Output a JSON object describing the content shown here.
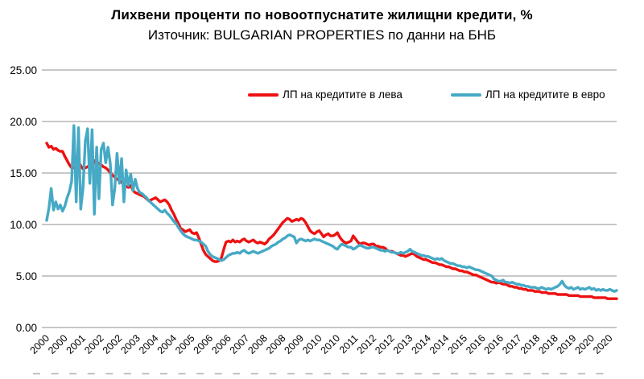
{
  "chart_data": {
    "type": "line",
    "title": "Лихвени проценти по новоотпуснатите жилищни кредити, %",
    "subtitle": "Източник: BULGARIAN PROPERTIES по данни на БНБ",
    "xlabel": "",
    "ylabel": "",
    "ylim": [
      0,
      25
    ],
    "y_ticks": [
      0,
      5,
      10,
      15,
      20,
      25
    ],
    "y_tick_labels": [
      "0.00",
      "5.00",
      "10.00",
      "15.00",
      "20.00",
      "25.00"
    ],
    "x_frequency": "monthly",
    "x_start": "2000-01",
    "x_end": "2020-12",
    "x_tick_every_months": 8,
    "x_tick_labels": [
      "2000",
      "2000",
      "2001",
      "2002",
      "2002",
      "2003",
      "2004",
      "2004",
      "2005",
      "2006",
      "2006",
      "2007",
      "2008",
      "2008",
      "2009",
      "2010",
      "2010",
      "2011",
      "2012",
      "2012",
      "2013",
      "2014",
      "2014",
      "2015",
      "2016",
      "2016",
      "2017",
      "2018",
      "2018",
      "2019",
      "2020",
      "2020"
    ],
    "grid": "horizontal",
    "legend_position": "top",
    "colors": {
      "gridline": "#a6a6a6",
      "tick_dash": "#b3b3b3",
      "text": "#000000"
    },
    "series": [
      {
        "name": "ЛП на кредитите в лева",
        "color": "#ee1111",
        "values": [
          17.9,
          17.5,
          17.6,
          17.3,
          17.4,
          17.2,
          17.1,
          17.1,
          16.6,
          16.2,
          15.8,
          15.5,
          15.5,
          15.8,
          16.1,
          15.7,
          15.4,
          15.5,
          15.6,
          15.8,
          15.5,
          16.2,
          16.1,
          15.9,
          15.8,
          15.6,
          15.5,
          15.3,
          15.0,
          14.8,
          14.6,
          14.4,
          14.3,
          14.1,
          13.9,
          13.7,
          13.6,
          13.8,
          13.3,
          13.1,
          13.0,
          12.9,
          12.8,
          12.7,
          12.5,
          12.3,
          12.4,
          12.5,
          12.6,
          12.4,
          12.2,
          12.3,
          12.4,
          12.2,
          11.9,
          11.4,
          11.0,
          10.5,
          10.1,
          9.6,
          9.5,
          9.3,
          9.4,
          9.5,
          9.2,
          9.1,
          9.2,
          8.7,
          8.1,
          7.5,
          7.1,
          6.9,
          6.7,
          6.5,
          6.4,
          6.4,
          6.5,
          6.8,
          7.6,
          8.3,
          8.4,
          8.3,
          8.5,
          8.3,
          8.4,
          8.3,
          8.5,
          8.6,
          8.4,
          8.3,
          8.4,
          8.5,
          8.3,
          8.2,
          8.3,
          8.2,
          8.1,
          8.3,
          8.6,
          8.8,
          9.0,
          9.3,
          9.6,
          9.9,
          10.2,
          10.4,
          10.6,
          10.5,
          10.3,
          10.4,
          10.5,
          10.4,
          10.6,
          10.5,
          10.2,
          9.8,
          9.4,
          9.2,
          9.1,
          9.3,
          9.4,
          9.1,
          8.8,
          9.0,
          9.1,
          8.9,
          8.9,
          9.0,
          9.2,
          8.8,
          8.5,
          8.3,
          8.2,
          8.3,
          8.4,
          8.9,
          8.6,
          8.3,
          8.1,
          8.2,
          8.2,
          8.1,
          8.0,
          8.1,
          8.1,
          7.9,
          7.9,
          7.8,
          7.8,
          7.7,
          7.5,
          7.4,
          7.4,
          7.3,
          7.2,
          7.1,
          7.0,
          7.0,
          6.9,
          7.0,
          7.1,
          7.2,
          7.1,
          6.9,
          6.8,
          6.7,
          6.6,
          6.6,
          6.5,
          6.4,
          6.3,
          6.3,
          6.2,
          6.1,
          6.1,
          6.0,
          5.9,
          5.9,
          5.8,
          5.7,
          5.7,
          5.6,
          5.5,
          5.5,
          5.4,
          5.4,
          5.3,
          5.2,
          5.1,
          5.1,
          5.0,
          4.9,
          4.8,
          4.7,
          4.6,
          4.5,
          4.4,
          4.4,
          4.3,
          4.4,
          4.3,
          4.2,
          4.2,
          4.1,
          4.0,
          4.0,
          3.9,
          3.9,
          3.8,
          3.8,
          3.7,
          3.7,
          3.6,
          3.6,
          3.6,
          3.5,
          3.5,
          3.5,
          3.4,
          3.4,
          3.4,
          3.3,
          3.3,
          3.3,
          3.3,
          3.2,
          3.2,
          3.2,
          3.2,
          3.2,
          3.1,
          3.1,
          3.1,
          3.1,
          3.1,
          3.0,
          3.0,
          3.0,
          3.0,
          3.0,
          3.0,
          2.9,
          2.9,
          2.9,
          2.9,
          2.9,
          2.9,
          2.8,
          2.8,
          2.8,
          2.8,
          2.8
        ]
      },
      {
        "name": "ЛП на кредитите в евро",
        "color": "#46a9c5",
        "values": [
          10.4,
          11.6,
          13.5,
          11.4,
          12.2,
          11.5,
          11.9,
          11.3,
          11.8,
          12.6,
          13.2,
          14.2,
          19.6,
          12.2,
          19.4,
          11.5,
          13.5,
          18.1,
          19.3,
          14.0,
          19.2,
          11.0,
          17.5,
          12.5,
          17.3,
          17.9,
          16.0,
          17.5,
          15.9,
          11.9,
          13.5,
          16.9,
          14.0,
          16.4,
          12.2,
          15.3,
          13.8,
          14.9,
          13.3,
          14.4,
          13.5,
          13.1,
          13.0,
          12.8,
          12.6,
          12.3,
          12.1,
          11.9,
          11.7,
          11.5,
          11.3,
          11.2,
          11.4,
          11.1,
          10.9,
          10.6,
          10.3,
          10.1,
          9.7,
          9.4,
          9.1,
          8.9,
          8.8,
          8.7,
          8.6,
          8.5,
          8.5,
          8.4,
          8.3,
          8.1,
          7.9,
          7.4,
          7.1,
          6.9,
          6.8,
          6.7,
          6.6,
          6.5,
          6.6,
          6.8,
          7.0,
          7.1,
          7.2,
          7.2,
          7.3,
          7.2,
          7.4,
          7.5,
          7.3,
          7.2,
          7.3,
          7.4,
          7.3,
          7.2,
          7.3,
          7.4,
          7.5,
          7.6,
          7.7,
          7.9,
          8.0,
          8.1,
          8.3,
          8.4,
          8.6,
          8.7,
          8.9,
          9.0,
          8.9,
          8.8,
          8.2,
          8.5,
          8.6,
          8.5,
          8.4,
          8.5,
          8.4,
          8.5,
          8.6,
          8.5,
          8.5,
          8.4,
          8.3,
          8.2,
          8.1,
          8.0,
          7.9,
          7.7,
          7.6,
          7.9,
          8.1,
          8.0,
          7.9,
          7.8,
          7.8,
          7.6,
          7.7,
          7.9,
          8.0,
          7.9,
          7.8,
          7.7,
          7.7,
          7.8,
          7.8,
          7.7,
          7.6,
          7.5,
          7.5,
          7.4,
          7.5,
          7.4,
          7.3,
          7.3,
          7.2,
          7.2,
          7.3,
          7.2,
          7.3,
          7.4,
          7.6,
          7.4,
          7.3,
          7.2,
          7.1,
          7.0,
          7.0,
          6.9,
          6.9,
          6.8,
          6.7,
          6.6,
          6.7,
          6.6,
          6.7,
          6.5,
          6.4,
          6.3,
          6.2,
          6.2,
          6.1,
          6.0,
          6.0,
          5.9,
          5.9,
          5.8,
          5.9,
          5.8,
          5.7,
          5.6,
          5.6,
          5.5,
          5.4,
          5.3,
          5.2,
          5.1,
          5.0,
          4.7,
          4.6,
          4.5,
          4.5,
          4.6,
          4.4,
          4.4,
          4.3,
          4.4,
          4.3,
          4.2,
          4.2,
          4.1,
          4.1,
          4.0,
          4.0,
          3.9,
          3.9,
          3.9,
          3.8,
          3.8,
          3.9,
          3.8,
          3.7,
          3.8,
          3.7,
          3.8,
          3.9,
          4.0,
          4.2,
          4.5,
          4.1,
          3.9,
          3.8,
          3.9,
          3.7,
          3.8,
          3.9,
          3.7,
          3.8,
          3.7,
          3.8,
          3.9,
          3.7,
          3.8,
          3.6,
          3.7,
          3.6,
          3.7,
          3.6,
          3.6,
          3.7,
          3.6,
          3.5,
          3.6
        ]
      }
    ]
  }
}
